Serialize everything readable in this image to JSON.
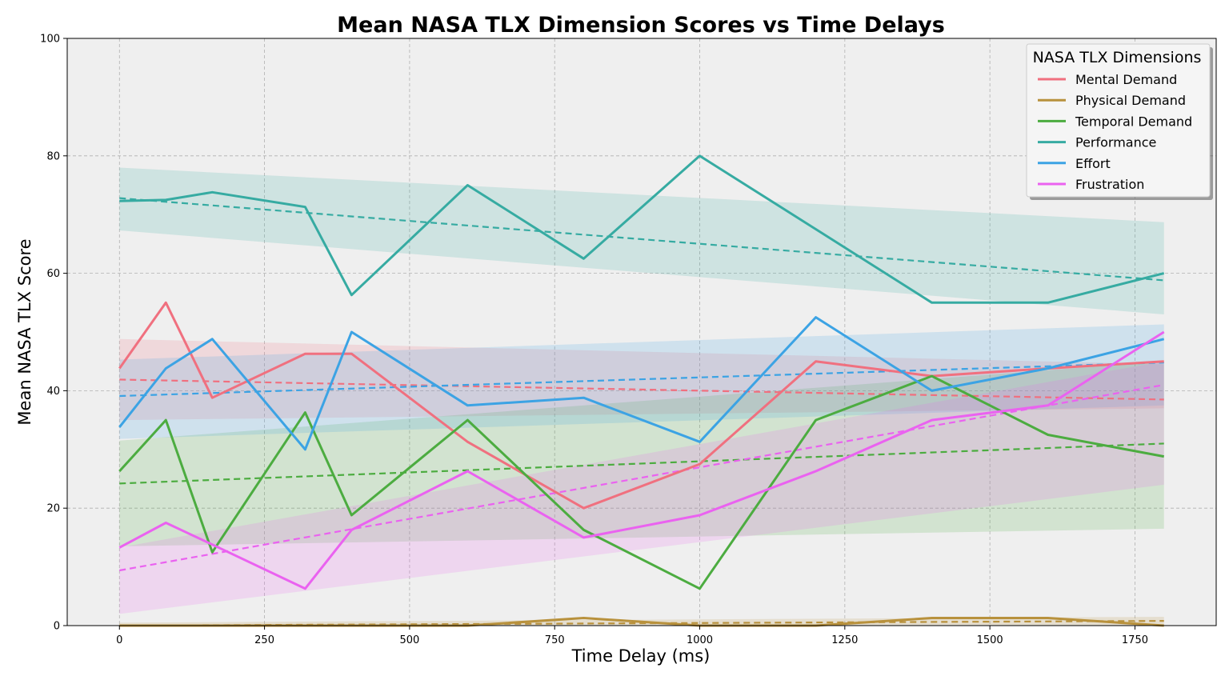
{
  "chart_data": {
    "type": "line",
    "title": "Mean NASA TLX Dimension Scores vs Time Delays",
    "xlabel": "Time Delay (ms)",
    "ylabel": "Mean NASA TLX Score",
    "xlim": [
      -90,
      1890
    ],
    "ylim": [
      0,
      100
    ],
    "xticks": [
      0,
      250,
      500,
      750,
      1000,
      1250,
      1500,
      1750
    ],
    "yticks": [
      0,
      20,
      40,
      60,
      80,
      100
    ],
    "grid": true,
    "background": "#efefef",
    "legend": {
      "title": "NASA TLX Dimensions",
      "placement": "top-right"
    },
    "x": [
      0,
      80,
      160,
      320,
      400,
      600,
      800,
      1000,
      1200,
      1400,
      1600,
      1800
    ],
    "series": [
      {
        "name": "Mental Demand",
        "color": "#f0707f",
        "values": [
          43.8,
          55.0,
          38.8,
          46.3,
          46.3,
          31.3,
          20.0,
          27.5,
          45.0,
          42.5,
          43.8,
          45.0
        ],
        "trend": [
          41.9,
          38.5
        ],
        "band_low": [
          35.0,
          37.0
        ],
        "band_high": [
          48.8,
          44.5
        ]
      },
      {
        "name": "Physical Demand",
        "color": "#b8913c",
        "values": [
          0.0,
          0.0,
          0.0,
          0.0,
          0.0,
          0.0,
          1.3,
          0.0,
          0.0,
          1.3,
          1.3,
          0.0
        ],
        "trend": [
          0.0,
          0.8
        ],
        "band_low": [
          0.0,
          0.0
        ],
        "band_high": [
          0.5,
          1.5
        ]
      },
      {
        "name": "Temporal Demand",
        "color": "#4cac40",
        "values": [
          26.3,
          35.0,
          12.5,
          36.3,
          18.8,
          35.0,
          16.3,
          6.3,
          35.0,
          42.5,
          32.5,
          28.8
        ],
        "trend": [
          24.2,
          31.0
        ],
        "band_low": [
          13.5,
          16.5
        ],
        "band_high": [
          31.5,
          45.0
        ]
      },
      {
        "name": "Performance",
        "color": "#36aba2",
        "values": [
          72.3,
          72.5,
          73.8,
          71.3,
          56.3,
          75.0,
          62.5,
          80.0,
          67.5,
          55.0,
          55.0,
          60.0
        ],
        "trend": [
          72.8,
          58.8
        ],
        "band_low": [
          67.3,
          53.0
        ],
        "band_high": [
          78.0,
          68.7
        ]
      },
      {
        "name": "Effort",
        "color": "#3ca3e4",
        "values": [
          33.8,
          43.8,
          48.8,
          30.0,
          50.0,
          37.5,
          38.8,
          31.3,
          52.5,
          40.0,
          43.8,
          48.8
        ],
        "trend": [
          39.1,
          44.8
        ],
        "band_low": [
          31.8,
          37.5
        ],
        "band_high": [
          45.3,
          51.3
        ]
      },
      {
        "name": "Frustration",
        "color": "#ea62f0",
        "values": [
          13.3,
          17.5,
          13.8,
          6.3,
          16.3,
          26.3,
          15.0,
          18.8,
          26.3,
          35.0,
          37.5,
          50.0
        ],
        "trend": [
          9.4,
          41.0
        ],
        "band_low": [
          2.0,
          24.0
        ],
        "band_high": [
          13.3,
          45.0
        ]
      }
    ]
  }
}
